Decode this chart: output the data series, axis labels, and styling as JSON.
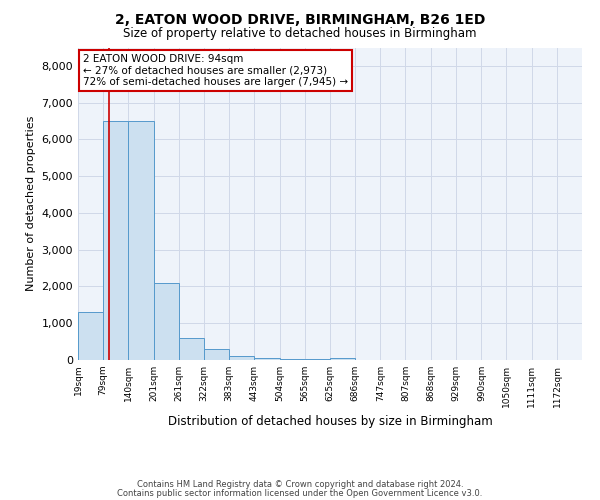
{
  "title": "2, EATON WOOD DRIVE, BIRMINGHAM, B26 1ED",
  "subtitle": "Size of property relative to detached houses in Birmingham",
  "xlabel": "Distribution of detached houses by size in Birmingham",
  "ylabel": "Number of detached properties",
  "footnote1": "Contains HM Land Registry data © Crown copyright and database right 2024.",
  "footnote2": "Contains public sector information licensed under the Open Government Licence v3.0.",
  "annotation_line1": "2 EATON WOOD DRIVE: 94sqm",
  "annotation_line2": "← 27% of detached houses are smaller (2,973)",
  "annotation_line3": "72% of semi-detached houses are larger (7,945) →",
  "property_size": 94,
  "bar_color": "#cce0f0",
  "bar_edge_color": "#5599cc",
  "red_line_color": "#cc0000",
  "grid_color": "#d0d8e8",
  "background_color": "#eef3fa",
  "ylim": [
    0,
    8500
  ],
  "yticks": [
    0,
    1000,
    2000,
    3000,
    4000,
    5000,
    6000,
    7000,
    8000
  ],
  "bins": [
    19,
    79,
    140,
    201,
    261,
    322,
    383,
    443,
    504,
    565,
    625,
    686,
    747,
    807,
    868,
    929,
    990,
    1050,
    1111,
    1172,
    1232
  ],
  "values": [
    1300,
    6500,
    6500,
    2100,
    600,
    300,
    100,
    50,
    30,
    20,
    50,
    0,
    0,
    0,
    0,
    0,
    0,
    0,
    0,
    0
  ]
}
